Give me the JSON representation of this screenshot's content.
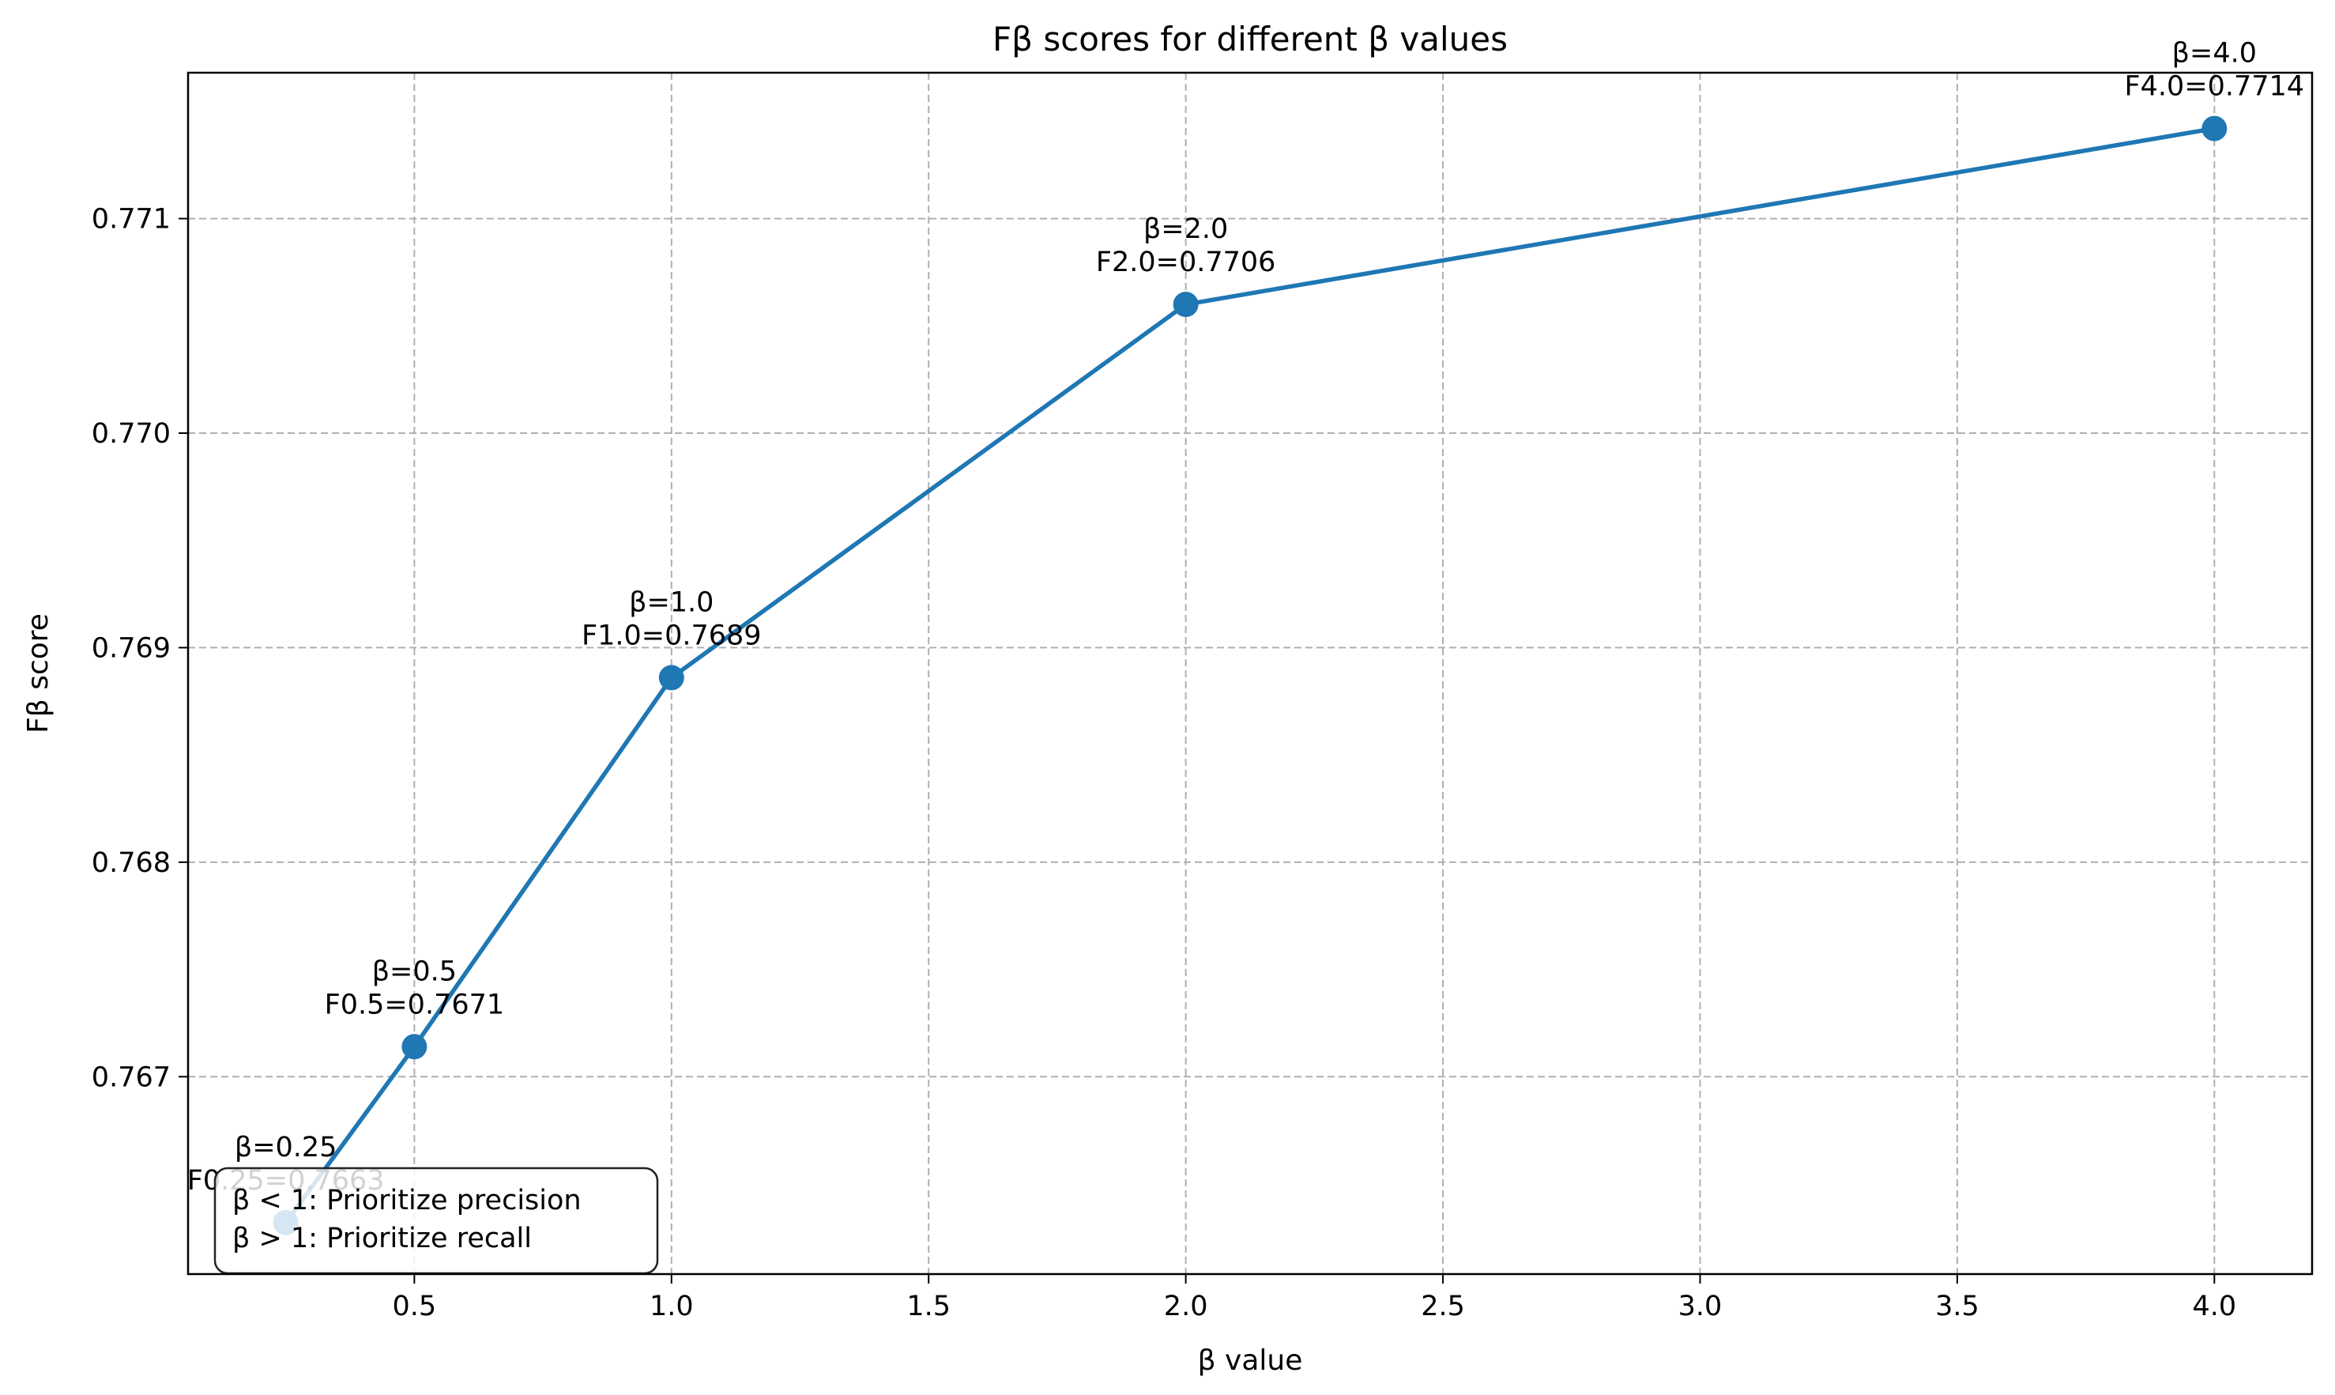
{
  "chart_data": {
    "type": "line",
    "title": "Fβ scores for different β values",
    "xlabel": "β value",
    "ylabel": "Fβ score",
    "xlim": [
      0.06,
      4.19
    ],
    "ylim": [
      0.76608,
      0.77168
    ],
    "x_ticks": [
      0.5,
      1.0,
      1.5,
      2.0,
      2.5,
      3.0,
      3.5,
      4.0
    ],
    "x_tick_labels": [
      "0.5",
      "1.0",
      "1.5",
      "2.0",
      "2.5",
      "3.0",
      "3.5",
      "4.0"
    ],
    "y_ticks": [
      0.767,
      0.768,
      0.769,
      0.77,
      0.771
    ],
    "y_tick_labels": [
      "0.767",
      "0.768",
      "0.769",
      "0.770",
      "0.771"
    ],
    "grid": true,
    "series": [
      {
        "color": "#1f77b4",
        "x": [
          0.25,
          0.5,
          1.0,
          2.0,
          4.0
        ],
        "y": [
          0.76632,
          0.76714,
          0.76886,
          0.7706,
          0.77142
        ]
      }
    ],
    "annotations": [
      {
        "line1": "β=0.25",
        "line2": "F0.25=0.7663"
      },
      {
        "line1": "β=0.5",
        "line2": "F0.5=0.7671"
      },
      {
        "line1": "β=1.0",
        "line2": "F1.0=0.7689"
      },
      {
        "line1": "β=2.0",
        "line2": "F2.0=0.7706"
      },
      {
        "line1": "β=4.0",
        "line2": "F4.0=0.7714"
      }
    ],
    "note_box": {
      "placement": "bottom-left",
      "lines": [
        "β < 1: Prioritize precision",
        "β > 1: Prioritize recall"
      ]
    }
  }
}
